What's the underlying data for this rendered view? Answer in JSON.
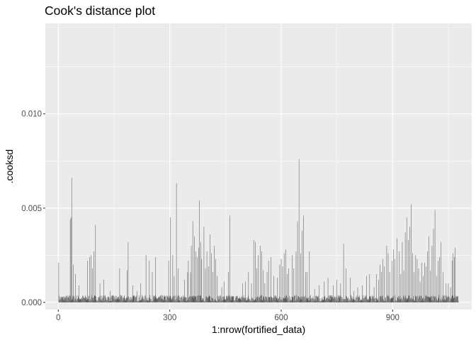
{
  "chart_data": {
    "type": "bar",
    "title": "Cook's distance plot",
    "xlabel": "1:nrow(fortified_data)",
    "ylabel": ".cooksd",
    "xlim": [
      -35,
      1113
    ],
    "ylim": [
      -0.00038,
      0.0148
    ],
    "x_ticks": [
      0,
      300,
      600,
      900
    ],
    "x_tick_labels": [
      "0",
      "300",
      "600",
      "900"
    ],
    "y_ticks": [
      0,
      0.005,
      0.01
    ],
    "y_tick_labels": [
      "0.000",
      "0.005",
      "0.010"
    ],
    "grid": true,
    "n": 1077,
    "bar_color": "#595959",
    "panel_background": "#EBEBEB",
    "grid_color": "#FFFFFF",
    "peaks": [
      [
        1,
        0.0021
      ],
      [
        32,
        0.0044
      ],
      [
        34,
        0.0045
      ],
      [
        36,
        0.0066
      ],
      [
        40,
        0.002
      ],
      [
        46,
        0.0015
      ],
      [
        56,
        0.0009
      ],
      [
        78,
        0.0022
      ],
      [
        84,
        0.0024
      ],
      [
        88,
        0.0025
      ],
      [
        92,
        0.0018
      ],
      [
        96,
        0.0027
      ],
      [
        100,
        0.0041
      ],
      [
        112,
        0.001
      ],
      [
        122,
        0.0012
      ],
      [
        140,
        0.0006
      ],
      [
        165,
        0.0018
      ],
      [
        185,
        0.0017
      ],
      [
        188,
        0.0032
      ],
      [
        200,
        0.0009
      ],
      [
        212,
        0.0006
      ],
      [
        222,
        0.001
      ],
      [
        236,
        0.0025
      ],
      [
        245,
        0.0022
      ],
      [
        253,
        0.0016
      ],
      [
        262,
        0.0024
      ],
      [
        297,
        0.0022
      ],
      [
        302,
        0.0045
      ],
      [
        308,
        0.0025
      ],
      [
        312,
        0.0014
      ],
      [
        318,
        0.0063
      ],
      [
        323,
        0.0018
      ],
      [
        340,
        0.0012
      ],
      [
        348,
        0.0016
      ],
      [
        350,
        0.0022
      ],
      [
        356,
        0.0016
      ],
      [
        358,
        0.003
      ],
      [
        362,
        0.0043
      ],
      [
        366,
        0.0035
      ],
      [
        370,
        0.0027
      ],
      [
        374,
        0.0024
      ],
      [
        378,
        0.0029
      ],
      [
        380,
        0.0054
      ],
      [
        384,
        0.0032
      ],
      [
        386,
        0.0023
      ],
      [
        392,
        0.004
      ],
      [
        396,
        0.0018
      ],
      [
        400,
        0.0027
      ],
      [
        404,
        0.0019
      ],
      [
        408,
        0.0036
      ],
      [
        412,
        0.0026
      ],
      [
        416,
        0.0016
      ],
      [
        420,
        0.003
      ],
      [
        424,
        0.0023
      ],
      [
        428,
        0.0014
      ],
      [
        440,
        0.0008
      ],
      [
        446,
        0.0011
      ],
      [
        458,
        0.0016
      ],
      [
        462,
        0.0046
      ],
      [
        470,
        0.0003
      ],
      [
        496,
        0.001
      ],
      [
        504,
        0.0011
      ],
      [
        512,
        0.0016
      ],
      [
        520,
        0.001
      ],
      [
        526,
        0.0033
      ],
      [
        530,
        0.0032
      ],
      [
        534,
        0.0018
      ],
      [
        538,
        0.0025
      ],
      [
        544,
        0.003
      ],
      [
        548,
        0.0027
      ],
      [
        552,
        0.0017
      ],
      [
        556,
        0.001
      ],
      [
        562,
        0.0016
      ],
      [
        566,
        0.0022
      ],
      [
        572,
        0.0024
      ],
      [
        580,
        0.0014
      ],
      [
        590,
        0.0013
      ],
      [
        596,
        0.002
      ],
      [
        600,
        0.0023
      ],
      [
        604,
        0.0019
      ],
      [
        608,
        0.0026
      ],
      [
        612,
        0.0028
      ],
      [
        616,
        0.0015
      ],
      [
        620,
        0.0018
      ],
      [
        630,
        0.0025
      ],
      [
        634,
        0.0018
      ],
      [
        640,
        0.0027
      ],
      [
        644,
        0.0043
      ],
      [
        648,
        0.0076
      ],
      [
        652,
        0.0026
      ],
      [
        656,
        0.0038
      ],
      [
        660,
        0.0046
      ],
      [
        666,
        0.0016
      ],
      [
        670,
        0.0016
      ],
      [
        676,
        0.0027
      ],
      [
        690,
        0.0007
      ],
      [
        702,
        0.0009
      ],
      [
        716,
        0.0011
      ],
      [
        726,
        0.0013
      ],
      [
        740,
        0.0009
      ],
      [
        750,
        0.0012
      ],
      [
        760,
        0.001
      ],
      [
        768,
        0.0031
      ],
      [
        774,
        0.0018
      ],
      [
        786,
        0.0013
      ],
      [
        796,
        0.0006
      ],
      [
        806,
        0.0008
      ],
      [
        818,
        0.0009
      ],
      [
        830,
        0.0014
      ],
      [
        838,
        0.0015
      ],
      [
        850,
        0.0008
      ],
      [
        856,
        0.0015
      ],
      [
        862,
        0.0012
      ],
      [
        866,
        0.002
      ],
      [
        870,
        0.0016
      ],
      [
        874,
        0.0023
      ],
      [
        878,
        0.0019
      ],
      [
        884,
        0.003
      ],
      [
        888,
        0.0026
      ],
      [
        892,
        0.0016
      ],
      [
        898,
        0.0022
      ],
      [
        902,
        0.0028
      ],
      [
        906,
        0.0023
      ],
      [
        912,
        0.0034
      ],
      [
        918,
        0.0027
      ],
      [
        922,
        0.0015
      ],
      [
        926,
        0.0032
      ],
      [
        930,
        0.0017
      ],
      [
        934,
        0.0037
      ],
      [
        938,
        0.0045
      ],
      [
        942,
        0.0033
      ],
      [
        946,
        0.004
      ],
      [
        950,
        0.0052
      ],
      [
        954,
        0.0026
      ],
      [
        958,
        0.0016
      ],
      [
        962,
        0.0025
      ],
      [
        966,
        0.0023
      ],
      [
        970,
        0.0018
      ],
      [
        974,
        0.0011
      ],
      [
        978,
        0.0021
      ],
      [
        982,
        0.0014
      ],
      [
        986,
        0.0021
      ],
      [
        990,
        0.0019
      ],
      [
        994,
        0.0027
      ],
      [
        998,
        0.0035
      ],
      [
        1002,
        0.0017
      ],
      [
        1006,
        0.003
      ],
      [
        1010,
        0.0039
      ],
      [
        1014,
        0.0049
      ],
      [
        1018,
        0.0014
      ],
      [
        1022,
        0.0022
      ],
      [
        1026,
        0.0024
      ],
      [
        1030,
        0.0032
      ],
      [
        1036,
        0.0016
      ],
      [
        1044,
        0.001
      ],
      [
        1050,
        0.001
      ],
      [
        1056,
        0.0008
      ],
      [
        1060,
        0.0022
      ],
      [
        1063,
        0.0026
      ],
      [
        1066,
        0.0024
      ],
      [
        1068,
        0.0029
      ]
    ]
  }
}
